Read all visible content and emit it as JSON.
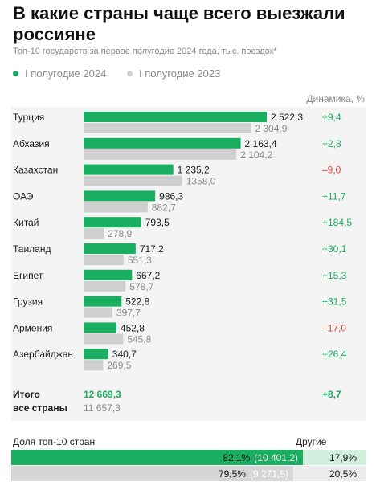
{
  "title": "В какие страны чаще всего выезжали россияне",
  "subtitle": "Топ-10 государств за первое полугодие 2024 года, тыс. поездок*",
  "legend": {
    "s2024": "I полугодие 2024",
    "s2023": "I полугодие 2023"
  },
  "dynamics_header": "Динамика, %",
  "colors": {
    "green": "#1aae61",
    "gray": "#cfcfcf",
    "positive": "#1aae61",
    "negative": "#e0473b"
  },
  "chart_data": {
    "type": "bar",
    "orientation": "horizontal",
    "categories": [
      "Турция",
      "Абхазия",
      "Казахстан",
      "ОАЭ",
      "Китай",
      "Таиланд",
      "Египет",
      "Грузия",
      "Армения",
      "Азербайджан"
    ],
    "series": [
      {
        "name": "I полугодие 2024",
        "values": [
          2522.3,
          2163.4,
          1235.2,
          986.3,
          793.5,
          717.2,
          667.2,
          522.8,
          452.8,
          340.7
        ],
        "labels": [
          "2 522,3",
          "2 163,4",
          "1 235,2",
          "986,3",
          "793,5",
          "717,2",
          "667,2",
          "522,8",
          "452,8",
          "340,7"
        ]
      },
      {
        "name": "I полугодие 2023",
        "values": [
          2304.9,
          2104.2,
          1358.0,
          882.7,
          278.9,
          551.3,
          578.7,
          397.7,
          545.8,
          269.5
        ],
        "labels": [
          "2 304,9",
          "2 104,2",
          "1358,0",
          "882,7",
          "278,9",
          "551,3",
          "578,7",
          "397,7",
          "545,8",
          "269,5"
        ]
      }
    ],
    "dynamics": [
      "+9,4",
      "+2,8",
      "–9,0",
      "+11,7",
      "+184,5",
      "+30,1",
      "+15,3",
      "+31,5",
      "–17,0",
      "+26,4"
    ],
    "total": {
      "label_line1": "Итого",
      "label_line2": "все страны",
      "v2024": "12 669,3",
      "v2023": "11 657,3",
      "dynamics": "+8,7"
    },
    "xlim": [
      0,
      2522.3
    ]
  },
  "share": {
    "label": "Доля топ-10 стран",
    "other_label": "Другие",
    "row2024": {
      "pct": 82.1,
      "pct_label": "82,1%",
      "abs": "(10 401,2)",
      "other": "17,9%"
    },
    "row2023": {
      "pct": 79.5,
      "pct_label": "79,5%",
      "abs": "(9 271,5)",
      "other": "20,5%"
    }
  }
}
